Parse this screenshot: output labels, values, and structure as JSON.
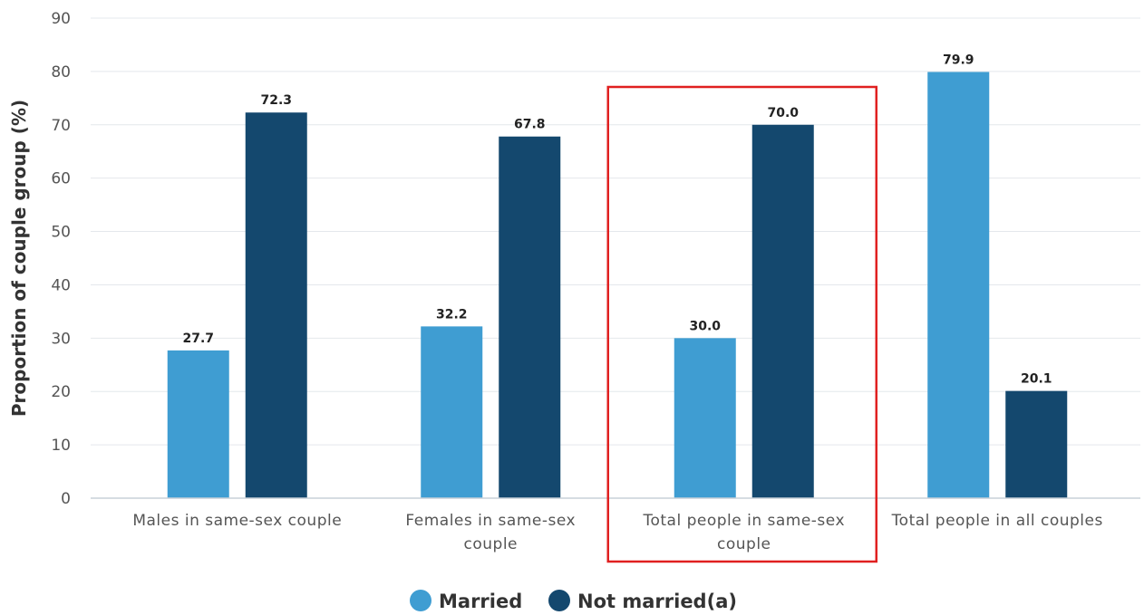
{
  "chart_data": {
    "type": "bar",
    "categories": [
      [
        "Males in same-sex couple"
      ],
      [
        "Females in same-sex",
        "couple"
      ],
      [
        "Total people in same-sex",
        "couple"
      ],
      [
        "Total people in all couples"
      ]
    ],
    "series": [
      {
        "name": "Married",
        "color": "#3f9dd2",
        "values": [
          27.7,
          32.2,
          30.0,
          79.9
        ]
      },
      {
        "name": "Not married(a)",
        "color": "#14486e",
        "values": [
          72.3,
          67.8,
          70.0,
          20.1
        ]
      }
    ],
    "ylabel": "Proportion of couple group (%)",
    "xlabel": "",
    "ylim": [
      0,
      90
    ],
    "yticks": [
      0,
      10,
      20,
      30,
      40,
      50,
      60,
      70,
      80,
      90
    ],
    "grid": true,
    "legend_position": "bottom",
    "highlighted_category_index": 2,
    "highlight_color": "#e02020"
  }
}
